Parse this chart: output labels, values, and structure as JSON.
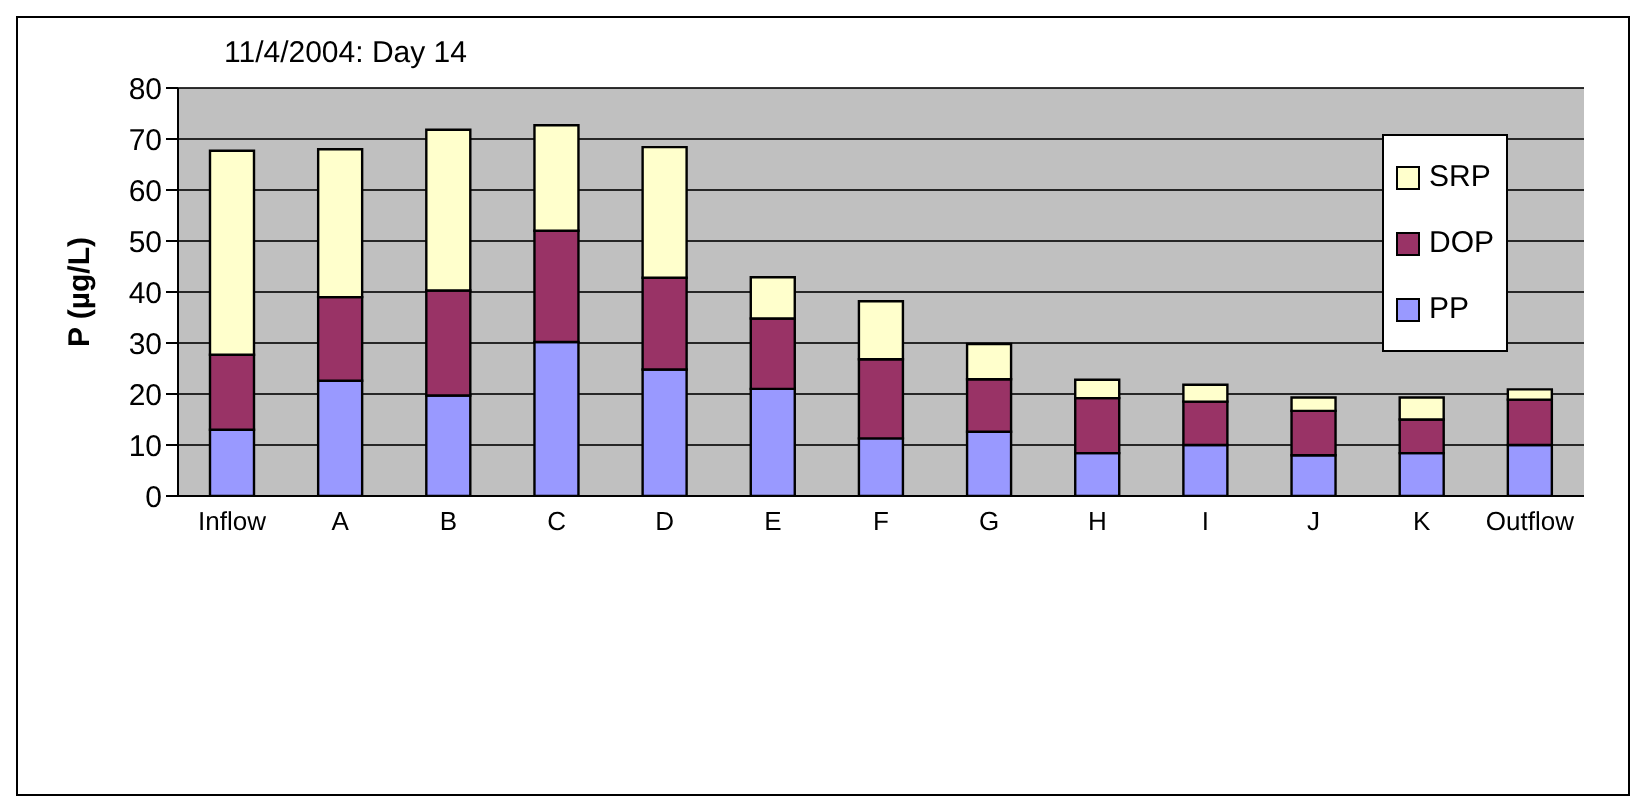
{
  "chart_data": {
    "type": "bar",
    "title": "11/4/2004: Day 14",
    "ylabel": "P (µg/L)",
    "stacked": true,
    "categories": [
      "Inflow",
      "A",
      "B",
      "C",
      "D",
      "E",
      "F",
      "G",
      "H",
      "I",
      "J",
      "K",
      "Outflow"
    ],
    "series": [
      {
        "name": "PP",
        "color": "#9999ff",
        "values": [
          13,
          22.6,
          19.7,
          30.2,
          24.8,
          21,
          11.3,
          12.6,
          8.4,
          10,
          8,
          8.4,
          10
        ]
      },
      {
        "name": "DOP",
        "color": "#993366",
        "values": [
          14.7,
          16.4,
          20.6,
          21.8,
          18,
          13.8,
          15.5,
          10.3,
          10.8,
          8.5,
          8.7,
          6.6,
          8.9
        ]
      },
      {
        "name": "SRP",
        "color": "#ffffcc",
        "values": [
          40,
          29,
          31.5,
          20.7,
          25.6,
          8.1,
          11.4,
          6.9,
          3.6,
          3.3,
          2.6,
          4.3,
          2
        ]
      }
    ],
    "ylim": [
      0,
      80
    ],
    "yticks": [
      0,
      10,
      20,
      30,
      40,
      50,
      60,
      70,
      80
    ],
    "grid": "y",
    "legend": "top right"
  }
}
